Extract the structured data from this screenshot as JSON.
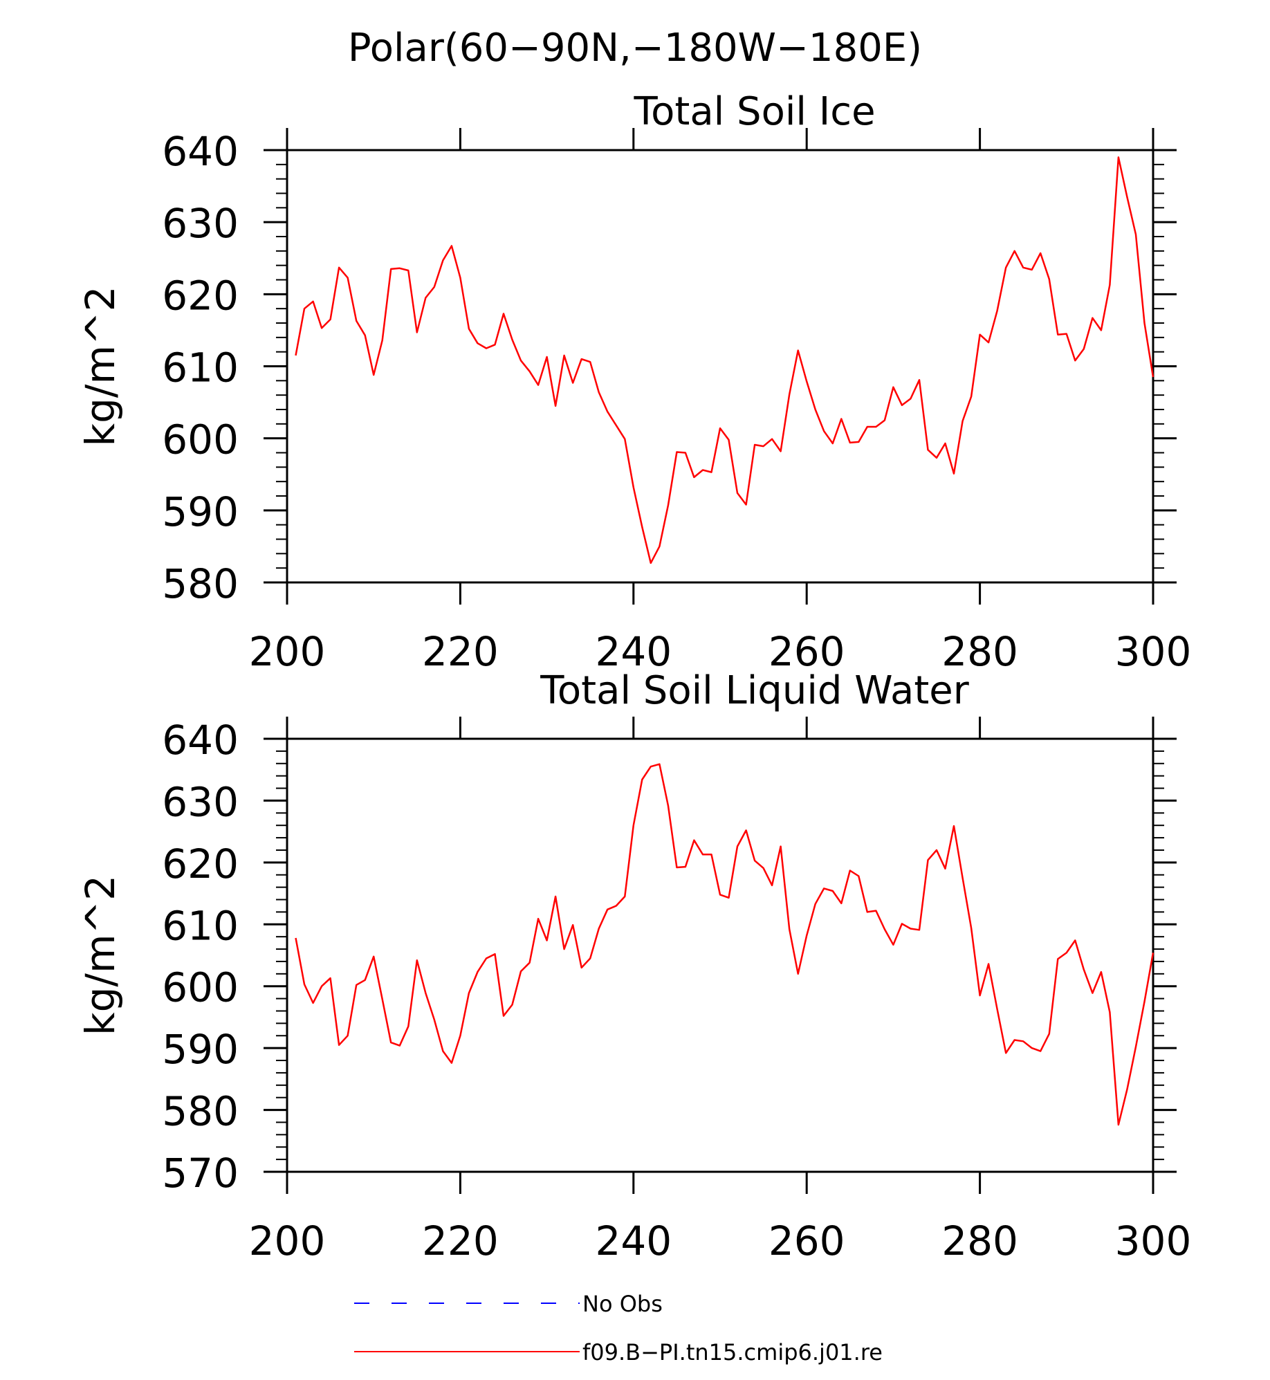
{
  "figure_title": "Polar(60−90N,−180W−180E)",
  "chart_data": [
    {
      "type": "line",
      "title": "Total Soil Ice",
      "xlabel": "",
      "ylabel": "kg/m^2",
      "xlim": [
        200,
        300
      ],
      "ylim": [
        580,
        640
      ],
      "xticks": [
        200,
        220,
        240,
        260,
        280,
        300
      ],
      "yticks": [
        580,
        590,
        600,
        610,
        620,
        630,
        640
      ],
      "series": [
        {
          "name": "f09.B−PI.tn15.cmip6.j01.re",
          "color": "#ff0000",
          "x": [
            201,
            202,
            203,
            204,
            205,
            206,
            207,
            208,
            209,
            210,
            211,
            212,
            213,
            214,
            215,
            216,
            217,
            218,
            219,
            220,
            221,
            222,
            223,
            224,
            225,
            226,
            227,
            228,
            229,
            230,
            231,
            232,
            233,
            234,
            235,
            236,
            237,
            238,
            239,
            240,
            241,
            242,
            243,
            244,
            245,
            246,
            247,
            248,
            249,
            250,
            251,
            252,
            253,
            254,
            255,
            256,
            257,
            258,
            259,
            260,
            261,
            262,
            263,
            264,
            265,
            266,
            267,
            268,
            269,
            270,
            271,
            272,
            273,
            274,
            275,
            276,
            277,
            278,
            279,
            280,
            281,
            282,
            283,
            284,
            285,
            286,
            287,
            288,
            289,
            290,
            291,
            292,
            293,
            294,
            295,
            296,
            297,
            298,
            299,
            300
          ],
          "y": [
            611.5,
            618,
            619,
            615.3,
            616.5,
            623.7,
            622.3,
            616.3,
            614.3,
            608.8,
            613.6,
            623.5,
            623.6,
            623.3,
            614.7,
            619.5,
            621,
            624.7,
            626.7,
            622.3,
            615.2,
            613.2,
            612.5,
            613,
            617.3,
            613.7,
            610.8,
            609.3,
            607.4,
            611.3,
            604.5,
            611.5,
            607.7,
            611,
            610.6,
            606.4,
            603.7,
            601.8,
            599.9,
            593.2,
            587.7,
            582.7,
            585,
            590.7,
            598.1,
            598,
            594.6,
            595.6,
            595.3,
            601.4,
            599.8,
            592.4,
            590.8,
            599.1,
            598.9,
            599.9,
            598.2,
            606.1,
            612.2,
            607.9,
            604,
            601,
            599.3,
            602.7,
            599.4,
            599.5,
            601.6,
            601.6,
            602.5,
            607.1,
            604.6,
            605.5,
            608.1,
            598.4,
            597.3,
            599.3,
            595.1,
            602.4,
            605.8,
            614.4,
            613.3,
            617.7,
            623.7,
            626,
            623.7,
            623.4,
            625.7,
            622.1,
            614.4,
            614.5,
            610.8,
            612.4,
            616.7,
            615,
            621.3,
            639,
            633.5,
            628.3,
            616,
            608.5
          ]
        }
      ]
    },
    {
      "type": "line",
      "title": "Total Soil Liquid Water",
      "xlabel": "",
      "ylabel": "kg/m^2",
      "xlim": [
        200,
        300
      ],
      "ylim": [
        570,
        640
      ],
      "xticks": [
        200,
        220,
        240,
        260,
        280,
        300
      ],
      "yticks": [
        570,
        580,
        590,
        600,
        610,
        620,
        630,
        640
      ],
      "series": [
        {
          "name": "f09.B−PI.tn15.cmip6.j01.re",
          "color": "#ff0000",
          "x": [
            201,
            202,
            203,
            204,
            205,
            206,
            207,
            208,
            209,
            210,
            211,
            212,
            213,
            214,
            215,
            216,
            217,
            218,
            219,
            220,
            221,
            222,
            223,
            224,
            225,
            226,
            227,
            228,
            229,
            230,
            231,
            232,
            233,
            234,
            235,
            236,
            237,
            238,
            239,
            240,
            241,
            242,
            243,
            244,
            245,
            246,
            247,
            248,
            249,
            250,
            251,
            252,
            253,
            254,
            255,
            256,
            257,
            258,
            259,
            260,
            261,
            262,
            263,
            264,
            265,
            266,
            267,
            268,
            269,
            270,
            271,
            272,
            273,
            274,
            275,
            276,
            277,
            278,
            279,
            280,
            281,
            282,
            283,
            284,
            285,
            286,
            287,
            288,
            289,
            290,
            291,
            292,
            293,
            294,
            295,
            296,
            297,
            298,
            299,
            300
          ],
          "y": [
            607.8,
            600.3,
            597.3,
            600,
            601.3,
            590.5,
            592,
            600.2,
            601,
            604.8,
            597.9,
            590.9,
            590.4,
            593.5,
            604.2,
            598.9,
            594.6,
            589.5,
            587.6,
            592,
            598.9,
            602.3,
            604.5,
            605.2,
            595.2,
            597,
            602.4,
            603.8,
            610.9,
            607.4,
            614.5,
            606,
            609.9,
            603,
            604.5,
            609.3,
            612.4,
            613,
            614.5,
            626,
            633.4,
            635.5,
            635.9,
            629.2,
            619.2,
            619.3,
            623.6,
            621.3,
            621.3,
            614.8,
            614.3,
            622.6,
            625.2,
            620.3,
            619.1,
            616.3,
            622.6,
            609.2,
            602,
            608.2,
            613.3,
            615.8,
            615.4,
            613.4,
            618.7,
            617.8,
            612,
            612.2,
            609.2,
            606.7,
            610.1,
            609.3,
            609.1,
            620.4,
            622,
            619,
            625.9,
            617.5,
            609.4,
            598.5,
            603.6,
            596.3,
            589.2,
            591.3,
            591.1,
            590,
            589.5,
            592.3,
            604.4,
            605.4,
            607.4,
            602.7,
            598.9,
            602.3,
            595.8,
            577.6,
            583.3,
            590.2,
            597.5,
            605.4
          ]
        }
      ]
    }
  ],
  "legend": [
    {
      "label": "No Obs",
      "color": "#0000ff",
      "style": "dashed"
    },
    {
      "label": "f09.B−PI.tn15.cmip6.j01.re",
      "color": "#ff0000",
      "style": "solid"
    }
  ]
}
